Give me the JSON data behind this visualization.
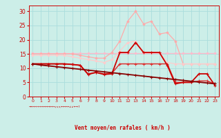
{
  "x": [
    0,
    1,
    2,
    3,
    4,
    5,
    6,
    7,
    8,
    9,
    10,
    11,
    12,
    13,
    14,
    15,
    16,
    17,
    18,
    19,
    20,
    21,
    22,
    23
  ],
  "line_flat": [
    15.3,
    15.3,
    15.3,
    15.3,
    15.3,
    15.3,
    15.3,
    15.3,
    15.3,
    15.3,
    15.3,
    15.3,
    15.3,
    15.3,
    15.3,
    15.3,
    15.3,
    15.3,
    15.3,
    15.3,
    15.3,
    15.3,
    15.3,
    15.3
  ],
  "line_peak_high": [
    15.0,
    15.0,
    15.0,
    15.0,
    15.0,
    15.0,
    14.5,
    14.0,
    13.5,
    13.5,
    15.5,
    19.5,
    26.5,
    30.0,
    25.5,
    26.5,
    22.0,
    22.5,
    19.5,
    11.5,
    11.5,
    11.5,
    11.5,
    11.5
  ],
  "line_peak_mid": [
    14.5,
    14.5,
    14.5,
    14.5,
    14.5,
    14.0,
    13.5,
    13.0,
    12.5,
    12.0,
    13.0,
    16.0,
    19.0,
    19.5,
    15.5,
    15.5,
    15.5,
    12.0,
    11.5,
    11.5,
    11.5,
    11.5,
    11.5,
    11.5
  ],
  "line_dark_peak": [
    11.5,
    11.5,
    11.5,
    11.5,
    11.5,
    11.3,
    11.0,
    7.8,
    8.5,
    7.8,
    8.0,
    15.5,
    15.5,
    19.0,
    15.5,
    15.5,
    15.5,
    11.0,
    4.5,
    5.0,
    5.0,
    8.0,
    8.0,
    4.0
  ],
  "line_med_flat": [
    11.5,
    11.5,
    11.5,
    11.5,
    11.5,
    11.3,
    11.0,
    8.0,
    8.5,
    8.0,
    8.2,
    11.5,
    11.5,
    11.5,
    11.5,
    11.5,
    11.5,
    11.5,
    5.0,
    5.0,
    5.0,
    5.5,
    5.5,
    4.5
  ],
  "line_diagonal": [
    11.5,
    11.1,
    10.8,
    10.5,
    10.2,
    9.9,
    9.6,
    9.3,
    9.0,
    8.7,
    8.4,
    8.1,
    7.8,
    7.5,
    7.2,
    6.9,
    6.6,
    6.3,
    6.0,
    5.7,
    5.4,
    5.1,
    4.8,
    4.5
  ],
  "colors": {
    "line_flat": "#ffbbcc",
    "line_peak_high": "#ffaaaa",
    "line_peak_mid": "#ffcccc",
    "line_dark_peak": "#cc0000",
    "line_med_flat": "#dd3333",
    "line_diagonal": "#880000"
  },
  "bg_color": "#cceee8",
  "grid_color": "#aadddd",
  "axis_color": "#cc0000",
  "xlabel": "Vent moyen/en rafales ( km/h )",
  "ylim": [
    0,
    32
  ],
  "xlim": [
    -0.5,
    23.5
  ],
  "yticks": [
    0,
    5,
    10,
    15,
    20,
    25,
    30
  ],
  "xticks": [
    0,
    1,
    2,
    3,
    4,
    5,
    6,
    7,
    8,
    9,
    10,
    11,
    12,
    13,
    14,
    15,
    16,
    17,
    18,
    19,
    20,
    21,
    22,
    23
  ],
  "arrow_symbols": "→→→→→→→→→→←←↖↖↖←←←←↙↙←→↑"
}
